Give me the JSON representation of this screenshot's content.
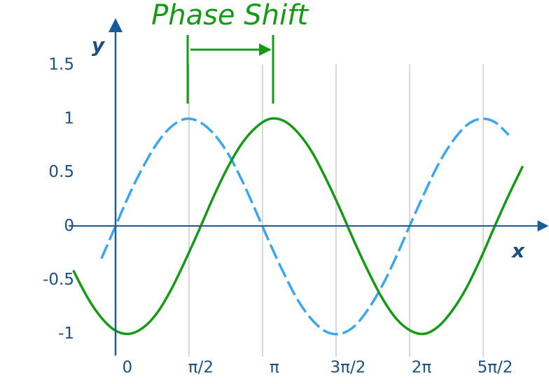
{
  "chart_data": {
    "type": "line",
    "annotation": "Phase Shift",
    "x_label": "x",
    "y_label": "y",
    "x": [
      -0.9,
      -0.6,
      -0.3,
      0,
      0.3,
      0.6,
      0.9,
      1.2,
      1.5,
      1.8,
      2.1,
      2.4,
      2.7,
      3.0,
      3.3,
      3.6,
      3.9,
      4.2,
      4.5,
      4.8,
      5.1,
      5.4,
      5.7,
      6.0,
      6.3,
      6.6,
      6.9,
      7.2,
      7.5,
      7.8,
      8.1,
      8.4,
      8.7
    ],
    "series": [
      {
        "color": "#3aa6ee",
        "dashed": true,
        "values": [
          null,
          null,
          -0.3,
          0,
          0.3,
          0.56,
          0.78,
          0.93,
          1.0,
          0.97,
          0.86,
          0.68,
          0.43,
          0.14,
          -0.16,
          -0.44,
          -0.69,
          -0.87,
          -0.98,
          -1.0,
          -0.93,
          -0.77,
          -0.55,
          -0.28,
          0.02,
          0.31,
          0.58,
          0.79,
          0.94,
          1.0,
          0.97,
          0.85,
          null
        ]
      },
      {
        "color": "#169a16",
        "dashed": false,
        "values": [
          -0.41,
          -0.66,
          -0.85,
          -0.97,
          -1.0,
          -0.94,
          -0.8,
          -0.58,
          -0.31,
          -0.02,
          0.28,
          0.55,
          0.77,
          0.92,
          1.0,
          0.98,
          0.87,
          0.69,
          0.44,
          0.16,
          -0.14,
          -0.42,
          -0.67,
          -0.86,
          -0.97,
          -1.0,
          -0.93,
          -0.78,
          -0.57,
          -0.3,
          0.0,
          0.29,
          0.56
        ]
      }
    ],
    "xlim": [
      -1,
      9.2
    ],
    "ylim": [
      -1.2,
      1.9
    ],
    "xticks": [
      0,
      {
        "value": 1.5708,
        "label": "π/2"
      },
      {
        "value": 3.1416,
        "label": "π"
      },
      {
        "value": 4.7124,
        "label": "3π/2"
      },
      {
        "value": 6.2832,
        "label": "2π"
      },
      {
        "value": 7.854,
        "label": "5π/2"
      }
    ],
    "yticks": [
      -1,
      -0.5,
      0,
      0.5,
      1,
      1.5
    ],
    "grid": "x"
  }
}
